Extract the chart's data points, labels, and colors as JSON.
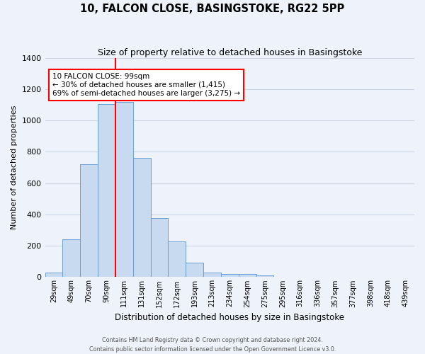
{
  "title": "10, FALCON CLOSE, BASINGSTOKE, RG22 5PP",
  "subtitle": "Size of property relative to detached houses in Basingstoke",
  "xlabel": "Distribution of detached houses by size in Basingstoke",
  "ylabel": "Number of detached properties",
  "bar_labels": [
    "29sqm",
    "49sqm",
    "70sqm",
    "90sqm",
    "111sqm",
    "131sqm",
    "152sqm",
    "172sqm",
    "193sqm",
    "213sqm",
    "234sqm",
    "254sqm",
    "275sqm",
    "295sqm",
    "316sqm",
    "336sqm",
    "357sqm",
    "377sqm",
    "398sqm",
    "418sqm",
    "439sqm"
  ],
  "bar_values": [
    30,
    240,
    720,
    1105,
    1120,
    760,
    375,
    230,
    90,
    30,
    20,
    20,
    10,
    0,
    0,
    0,
    0,
    0,
    0,
    0,
    0
  ],
  "bar_color": "#c8daf0",
  "bar_edge_color": "#6a9fd8",
  "vline_x_index": 3.5,
  "vline_color": "red",
  "annotation_text": "10 FALCON CLOSE: 99sqm\n← 30% of detached houses are smaller (1,415)\n69% of semi-detached houses are larger (3,275) →",
  "annotation_box_color": "white",
  "annotation_box_edge_color": "red",
  "ylim": [
    0,
    1400
  ],
  "yticks": [
    0,
    200,
    400,
    600,
    800,
    1000,
    1200,
    1400
  ],
  "footer_line1": "Contains HM Land Registry data © Crown copyright and database right 2024.",
  "footer_line2": "Contains public sector information licensed under the Open Government Licence v3.0.",
  "bg_color": "#eef2fa",
  "grid_color": "#ccd6e8"
}
